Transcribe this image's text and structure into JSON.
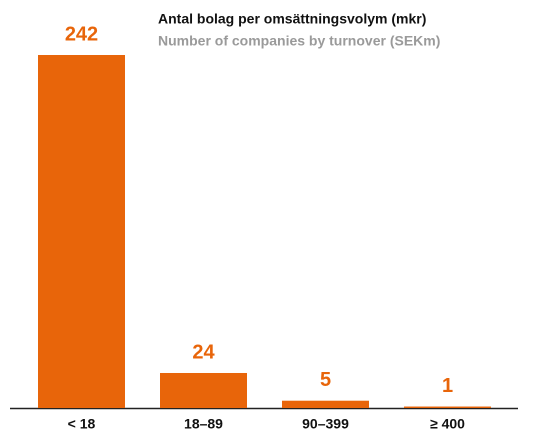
{
  "chart_data": {
    "type": "bar",
    "title": "Antal bolag per omsättningsvolym (mkr)",
    "subtitle": "Number of companies by turnover (SEKm)",
    "categories": [
      "< 18",
      "18–89",
      "90–399",
      "≥ 400"
    ],
    "values": [
      242,
      24,
      5,
      1
    ],
    "color": "#e8650a"
  }
}
